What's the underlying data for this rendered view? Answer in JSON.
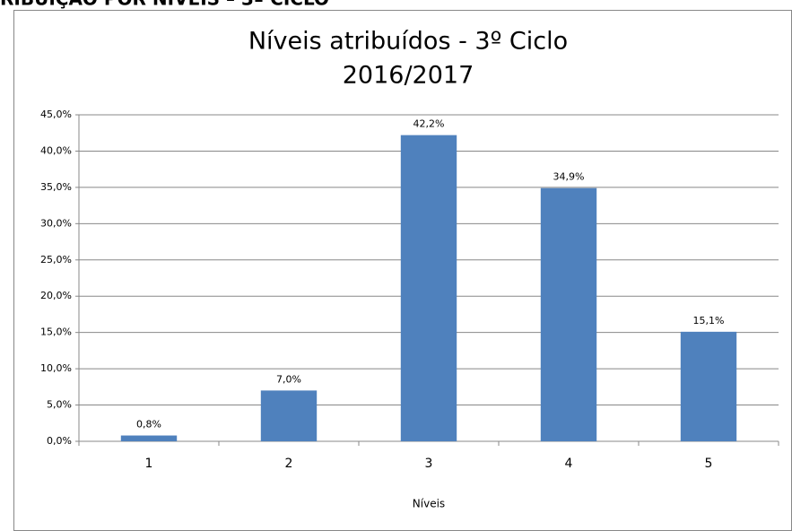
{
  "header": "RIBUIÇÃO POR NÍVEIS – 3º CICLO",
  "chart_data": {
    "type": "bar",
    "title": "Níveis atribuídos - 3º Ciclo",
    "subtitle": "2016/2017",
    "x_label": "Níveis",
    "categories": [
      "1",
      "2",
      "3",
      "4",
      "5"
    ],
    "values": [
      0.8,
      7.0,
      42.2,
      34.9,
      15.1
    ],
    "value_labels": [
      "0,8%",
      "7,0%",
      "42,2%",
      "34,9%",
      "15,1%"
    ],
    "color": "#4f81bd",
    "ylim": [
      0,
      45
    ],
    "yticks": [
      {
        "value": 0,
        "label": "0,0%"
      },
      {
        "value": 5,
        "label": "5,0%"
      },
      {
        "value": 10,
        "label": "10,0%"
      },
      {
        "value": 15,
        "label": "15,0%"
      },
      {
        "value": 20,
        "label": "20,0%"
      },
      {
        "value": 25,
        "label": "25,0%"
      },
      {
        "value": 30,
        "label": "30,0%"
      },
      {
        "value": 35,
        "label": "35,0%"
      },
      {
        "value": 40,
        "label": "40,0%"
      },
      {
        "value": 45,
        "label": "45,0%"
      }
    ],
    "grid": true
  }
}
